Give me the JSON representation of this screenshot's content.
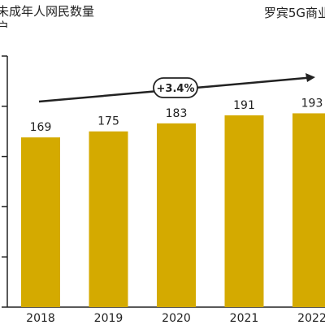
{
  "header": {
    "title_line1": "未成年人网民数量",
    "title_line2": "户",
    "source": "罗宾5G商业"
  },
  "colors": {
    "bar": "#d4aa00",
    "axis": "#222222"
  },
  "chart_data": {
    "type": "bar",
    "title": "未成年人网民数量",
    "categories": [
      "2018",
      "2019",
      "2020",
      "2021",
      "2022"
    ],
    "values": [
      169,
      175,
      183,
      191,
      193
    ],
    "data_labels": [
      "169",
      "175",
      "183",
      "191",
      "193"
    ],
    "ylim": [
      0,
      250
    ],
    "annotation": {
      "text": "+3.4%",
      "type": "growth-arrow"
    },
    "grid": false
  }
}
